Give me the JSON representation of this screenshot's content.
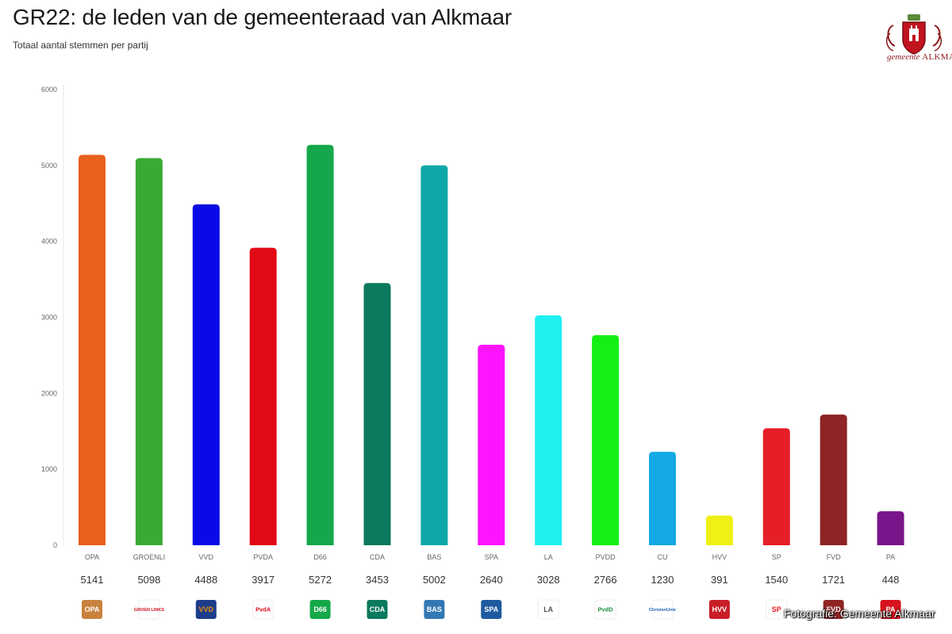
{
  "header": {
    "title": "GR22: de leden van de gemeenteraad van Alkmaar",
    "subtitle": "Totaal aantal stemmen per partij"
  },
  "logo": {
    "text_prefix": "gemeente",
    "text_name": "ALKMAAR"
  },
  "photo_credit": "Fotografie: Gemeente Alkmaar",
  "chart_data": {
    "type": "bar",
    "title": "GR22: de leden van de gemeenteraad van Alkmaar",
    "subtitle": "Totaal aantal stemmen per partij",
    "xlabel": "",
    "ylabel": "",
    "ylim": [
      0,
      6000
    ],
    "yticks": [
      0,
      1000,
      2000,
      3000,
      4000,
      5000,
      6000
    ],
    "grid": false,
    "categories": [
      "OPA",
      "GROENLI",
      "VVD",
      "PVDA",
      "D66",
      "CDA",
      "BAS",
      "SPA",
      "LA",
      "PVDD",
      "CU",
      "HVV",
      "SP",
      "FVD",
      "PA"
    ],
    "values": [
      5141,
      5098,
      4488,
      3917,
      5272,
      3453,
      5002,
      2640,
      3028,
      2766,
      1230,
      391,
      1540,
      1721,
      448
    ],
    "colors": [
      "#e8601c",
      "#3aaa35",
      "#0a0ae6",
      "#e20a16",
      "#14a84a",
      "#0b7a5e",
      "#0fa8a8",
      "#ff14ff",
      "#1ef0f0",
      "#14f014",
      "#14a8e6",
      "#f0f014",
      "#e61e28",
      "#8e2424",
      "#7a148a"
    ],
    "party_logos": [
      {
        "icon": "opa-logo-icon",
        "label": "OPA",
        "fg": "#ffffff",
        "bg": "#c8823c"
      },
      {
        "icon": "groenlinks-logo-icon",
        "label": "GROEN LINKS",
        "fg": "#d6121e",
        "bg": "#ffffff"
      },
      {
        "icon": "vvd-logo-icon",
        "label": "VVD",
        "fg": "#f08c00",
        "bg": "#1e3c8c"
      },
      {
        "icon": "pvda-logo-icon",
        "label": "PvdA",
        "fg": "#e20a16",
        "bg": "#ffffff"
      },
      {
        "icon": "d66-logo-icon",
        "label": "D66",
        "fg": "#ffffff",
        "bg": "#14a84a"
      },
      {
        "icon": "cda-logo-icon",
        "label": "CDA",
        "fg": "#ffffff",
        "bg": "#0b7a5e"
      },
      {
        "icon": "bas-logo-icon",
        "label": "BAS",
        "fg": "#ffffff",
        "bg": "#3278b4"
      },
      {
        "icon": "spa-logo-icon",
        "label": "SPA",
        "fg": "#ffffff",
        "bg": "#1e5aa0"
      },
      {
        "icon": "la-logo-icon",
        "label": "LA",
        "fg": "#555555",
        "bg": "#ffffff"
      },
      {
        "icon": "pvdd-logo-icon",
        "label": "PvdD",
        "fg": "#1e8c3c",
        "bg": "#ffffff"
      },
      {
        "icon": "cu-logo-icon",
        "label": "ChristenUnie",
        "fg": "#1e64b4",
        "bg": "#ffffff"
      },
      {
        "icon": "hvv-logo-icon",
        "label": "HVV",
        "fg": "#ffffff",
        "bg": "#c81e28"
      },
      {
        "icon": "sp-logo-icon",
        "label": "SP",
        "fg": "#e61e28",
        "bg": "#ffffff"
      },
      {
        "icon": "fvd-logo-icon",
        "label": "FVD",
        "fg": "#ffffff",
        "bg": "#8e2424"
      },
      {
        "icon": "pa-logo-icon",
        "label": "PA",
        "fg": "#ffffff",
        "bg": "#d6121e"
      }
    ]
  }
}
